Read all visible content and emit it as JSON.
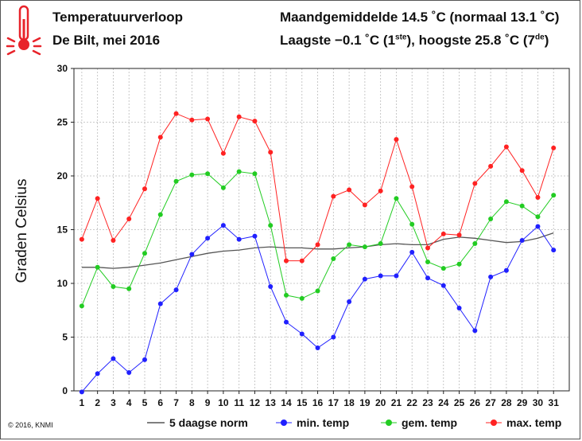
{
  "header": {
    "title": "Temperatuurverloop",
    "subtitle": "De Bilt, mei 2016",
    "monthly_avg": "Maandgemiddelde 14.5 ˚C (normaal 13.1 ˚C)",
    "low_prefix": "Laagste −0.1 ˚C (1",
    "low_sup": "ste",
    "high_prefix": "), hoogste 25.8 ˚C (7",
    "high_sup": "de",
    "high_suffix": ")"
  },
  "copyright": "© 2016, KNMI",
  "icon": "thermometer-icon",
  "colors": {
    "norm": "#555555",
    "min": "#2020ff",
    "avg": "#22cc22",
    "max": "#ff2222",
    "icon": "#e8232a"
  },
  "chart_data": {
    "type": "line",
    "ylabel": "Graden Celsius",
    "xlabel": "",
    "ylim": [
      0,
      30
    ],
    "yticks": [
      0,
      5,
      10,
      15,
      20,
      25,
      30
    ],
    "grid": true,
    "legend_position": "bottom",
    "x": [
      1,
      2,
      3,
      4,
      5,
      6,
      7,
      8,
      9,
      10,
      11,
      12,
      13,
      14,
      15,
      16,
      17,
      18,
      19,
      20,
      21,
      22,
      23,
      24,
      25,
      26,
      27,
      28,
      29,
      30,
      31
    ],
    "series": [
      {
        "name": "5 daagse norm",
        "color": "#555555",
        "markers": false,
        "values": [
          11.5,
          11.5,
          11.4,
          11.5,
          11.7,
          11.9,
          12.2,
          12.5,
          12.8,
          13.0,
          13.1,
          13.3,
          13.4,
          13.3,
          13.3,
          13.2,
          13.2,
          13.3,
          13.4,
          13.6,
          13.7,
          13.6,
          13.6,
          14.1,
          14.3,
          14.2,
          14.0,
          13.8,
          13.9,
          14.2,
          14.7
        ]
      },
      {
        "name": "min. temp",
        "color": "#2020ff",
        "markers": true,
        "values": [
          -0.1,
          1.6,
          3.0,
          1.7,
          2.9,
          8.1,
          9.4,
          12.7,
          14.2,
          15.4,
          14.1,
          14.4,
          9.7,
          6.4,
          5.3,
          4.0,
          5.0,
          8.3,
          10.4,
          10.7,
          10.7,
          12.9,
          10.5,
          9.8,
          7.7,
          5.6,
          10.6,
          11.2,
          14.0,
          15.3,
          13.1
        ]
      },
      {
        "name": "gem. temp",
        "color": "#22cc22",
        "markers": true,
        "values": [
          7.9,
          11.5,
          9.7,
          9.5,
          12.8,
          16.4,
          19.5,
          20.1,
          20.2,
          18.9,
          20.4,
          20.2,
          15.4,
          8.9,
          8.6,
          9.3,
          12.3,
          13.6,
          13.4,
          13.7,
          17.9,
          15.5,
          12.0,
          11.4,
          11.8,
          13.7,
          16.0,
          17.6,
          17.2,
          16.2,
          18.2
        ]
      },
      {
        "name": "max. temp",
        "color": "#ff2222",
        "markers": true,
        "values": [
          14.1,
          17.9,
          14.0,
          16.0,
          18.8,
          23.6,
          25.8,
          25.2,
          25.3,
          22.1,
          25.5,
          25.1,
          22.2,
          12.1,
          12.1,
          13.6,
          18.1,
          18.7,
          17.3,
          18.6,
          23.4,
          19.0,
          13.3,
          14.6,
          14.5,
          19.3,
          20.9,
          22.7,
          20.5,
          18.0,
          22.6
        ]
      }
    ]
  }
}
